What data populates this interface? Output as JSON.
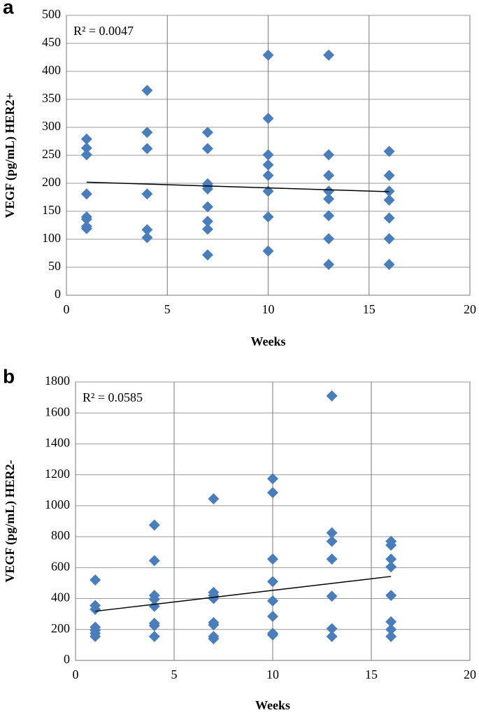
{
  "chart_data": [
    {
      "type": "scatter",
      "label": "a",
      "x_label": "Weeks",
      "y_label": "VEGF (pg/mL) HER2+",
      "annotation": "R² = 0.0047",
      "xlim": [
        0,
        20
      ],
      "xticks": [
        0,
        5,
        10,
        15,
        20
      ],
      "ylim": [
        0,
        500
      ],
      "yticks": [
        0,
        50,
        100,
        150,
        200,
        250,
        300,
        350,
        400,
        450,
        500
      ],
      "grid": true,
      "series": [
        {
          "color": "#4a7ebb",
          "x": [
            1,
            1,
            1,
            1,
            1,
            1,
            1,
            1,
            4,
            4,
            4,
            4,
            4,
            4,
            7,
            7,
            7,
            7,
            7,
            7,
            7,
            7,
            7,
            10,
            10,
            10,
            10,
            10,
            10,
            10,
            10,
            13,
            13,
            13,
            13,
            13,
            13,
            13,
            13,
            16,
            16,
            16,
            16,
            16,
            16,
            16
          ],
          "values": [
            279,
            263,
            251,
            181,
            140,
            136,
            123,
            119,
            366,
            291,
            262,
            181,
            117,
            103,
            291,
            262,
            199,
            195,
            190,
            158,
            132,
            118,
            72,
            429,
            316,
            251,
            233,
            214,
            186,
            140,
            79,
            429,
            251,
            214,
            186,
            172,
            142,
            101,
            55,
            257,
            214,
            186,
            170,
            138,
            101,
            55
          ]
        }
      ],
      "trendline": {
        "color": "#000000",
        "x": [
          1,
          16
        ],
        "y": [
          202,
          185
        ]
      }
    },
    {
      "type": "scatter",
      "label": "b",
      "x_label": "Weeks",
      "y_label": "VEGF (pg/mL) HER2-",
      "annotation": "R² = 0.0585",
      "xlim": [
        0,
        20
      ],
      "xticks": [
        0,
        5,
        10,
        15,
        20
      ],
      "ylim": [
        0,
        1800
      ],
      "yticks": [
        0,
        200,
        400,
        600,
        800,
        1000,
        1200,
        1400,
        1600,
        1800
      ],
      "grid": true,
      "series": [
        {
          "color": "#4a7ebb",
          "x": [
            1,
            1,
            1,
            1,
            1,
            1,
            1,
            4,
            4,
            4,
            4,
            4,
            4,
            4,
            4,
            7,
            7,
            7,
            7,
            7,
            7,
            7,
            7,
            10,
            10,
            10,
            10,
            10,
            10,
            10,
            10,
            13,
            13,
            13,
            13,
            13,
            13,
            13,
            16,
            16,
            16,
            16,
            16,
            16,
            16,
            16
          ],
          "values": [
            520,
            355,
            330,
            215,
            195,
            175,
            155,
            875,
            645,
            420,
            395,
            350,
            240,
            225,
            155,
            1045,
            440,
            420,
            400,
            245,
            230,
            155,
            140,
            1175,
            1085,
            655,
            510,
            385,
            285,
            175,
            165,
            1710,
            825,
            770,
            655,
            415,
            205,
            155,
            770,
            745,
            655,
            605,
            420,
            250,
            200,
            155
          ]
        }
      ],
      "trendline": {
        "color": "#000000",
        "x": [
          1,
          16
        ],
        "y": [
          318,
          543
        ]
      }
    }
  ]
}
